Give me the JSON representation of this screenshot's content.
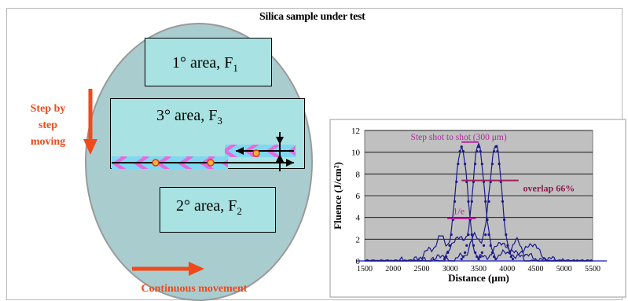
{
  "title": "Silica sample under test",
  "areas": {
    "area1": {
      "label": "1° area, F",
      "sub": "1"
    },
    "area3": {
      "label": "3° area, F",
      "sub": "3"
    },
    "area2": {
      "label": "2° area, F",
      "sub": "2"
    }
  },
  "left_label": {
    "line1": "Step by",
    "line2": "step",
    "line3": "moving"
  },
  "bottom_label": "Continuous movement",
  "colors": {
    "orange": "#f04a1a",
    "disk": "#a9cccf",
    "area": "#a8e2e2",
    "plot_bg": "#c0c0c0",
    "trace": "#1a1a8c",
    "annotation": "#b02aa0"
  },
  "chart_data": {
    "type": "line",
    "xlabel": "Distance (μm)",
    "ylabel": "Fluence (J/cm²)",
    "xlim": [
      1500,
      5500
    ],
    "ylim": [
      0,
      12
    ],
    "x_ticks": [
      "1500",
      "2000",
      "2500",
      "3000",
      "3500",
      "4000",
      "4500",
      "5000",
      "5500"
    ],
    "y_ticks": [
      "0",
      "2",
      "4",
      "6",
      "8",
      "10",
      "12"
    ],
    "grid": true,
    "peak_centers": [
      3200,
      3500,
      3800
    ],
    "peak_value": 10.5,
    "annotations": {
      "step": "Step shot to shot (300 μm)",
      "overlap": "overlap 66%",
      "one_over_e": "1/e"
    }
  }
}
